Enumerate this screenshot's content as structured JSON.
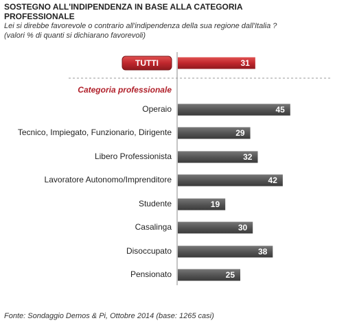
{
  "chart_data": {
    "type": "bar",
    "title": "SOSTEGNO ALL'INDIPENDENZA IN BASE ALLA CATEGORIA PROFESSIONALE",
    "subtitle": [
      "Lei si direbbe favorevole o contrario all'indipendenza della sua regione dall'Italia ?",
      "(valori % di quanti si dichiarano favorevoli)"
    ],
    "total": {
      "label": "TUTTI",
      "value": 31,
      "color": "#c0272d"
    },
    "group_label": "Categoria professionale",
    "categories": [
      "Operaio",
      "Tecnico, Impiegato, Funzionario, Dirigente",
      "Libero Professionista",
      "Lavoratore Autonomo/Imprenditore",
      "Studente",
      "Casalinga",
      "Disoccupato",
      "Pensionato"
    ],
    "values": [
      45,
      29,
      32,
      42,
      19,
      30,
      38,
      25
    ],
    "color": "#565656",
    "xlim": [
      0,
      50
    ],
    "source": "Fonte: Sondaggio Demos & Pi, Ottobre 2014 (base: 1265 casi)"
  }
}
